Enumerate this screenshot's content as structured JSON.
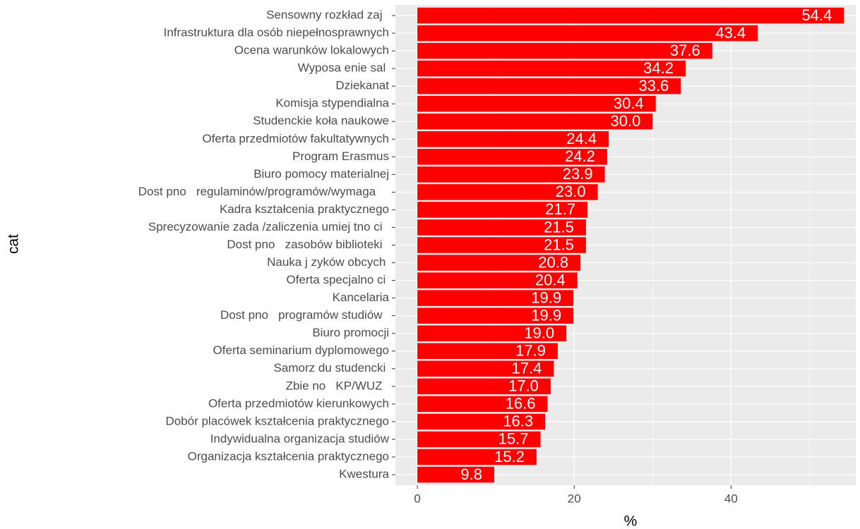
{
  "chart_data": {
    "type": "bar",
    "orientation": "horizontal",
    "categories": [
      "Sensowny rozkład zaj  ",
      "Infrastruktura dla osób niepełnosprawnych",
      "Ocena warunków lokalowych",
      "Wyposa enie sal ",
      "Dziekanat",
      "Komisja stypendialna",
      "Studenckie koła naukowe",
      "Oferta przedmiotów fakultatywnych",
      "Program Erasmus",
      "Biuro pomocy materialnej",
      "Dost pno   regulaminów/programów/wymaga    ",
      "Kadra kształcenia praktycznego",
      "Sprecyzowanie zada /zaliczenia umiej tno ci  ",
      "Dost pno   zasobów biblioteki  ",
      "Nauka j zyków obcych ",
      "Oferta specjalno ci ",
      "Kancelaria",
      "Dost pno   programów studiów  ",
      "Biuro promocji",
      "Oferta seminarium dyplomowego",
      "Samorz du studencki ",
      "Zbie no   KP/WUZ  ",
      "Oferta przedmiotów kierunkowych",
      "Dobór placówek kształcenia praktycznego",
      "Indywidualna organizacja studiów",
      "Organizacja kształcenia praktycznego",
      "Kwestura"
    ],
    "values": [
      54.4,
      43.4,
      37.6,
      34.2,
      33.6,
      30.4,
      30.0,
      24.4,
      24.2,
      23.9,
      23.0,
      21.7,
      21.5,
      21.5,
      20.8,
      20.4,
      19.9,
      19.9,
      19.0,
      17.9,
      17.4,
      17.0,
      16.6,
      16.3,
      15.7,
      15.2,
      9.8
    ],
    "value_labels": [
      "54.4",
      "43.4",
      "37.6",
      "34.2",
      "33.6",
      "30.4",
      "30.0",
      "24.4",
      "24.2",
      "23.9",
      "23.0",
      "21.7",
      "21.5",
      "21.5",
      "20.8",
      "20.4",
      "19.9",
      "19.9",
      "19.0",
      "17.9",
      "17.4",
      "17.0",
      "16.6",
      "16.3",
      "15.7",
      "15.2",
      "9.8"
    ],
    "color": "#ff0000",
    "xlabel": "%",
    "ylabel": "cat",
    "xlim": [
      -2.8,
      55.9
    ],
    "xticks": [
      0,
      20,
      40
    ],
    "xminor": [
      10,
      30,
      50
    ],
    "grid": true
  }
}
